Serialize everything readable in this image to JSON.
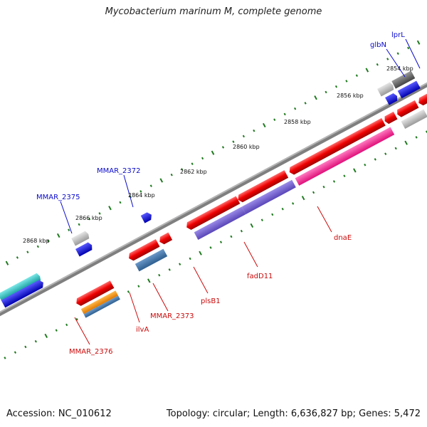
{
  "title": "Mycobacterium marinum M, complete genome",
  "footer": {
    "accession": "Accession: NC_010612",
    "summary": "Topology: circular; Length: 6,636,827 bp; Genes: 5,472"
  },
  "colors": {
    "backbone": "#7f7f7f",
    "tick": "#1f7a1f",
    "label_forward": "#0a0acc",
    "label_reverse": "#cc0a0a"
  },
  "scale_labels": [
    "2854 kbp",
    "2856 kbp",
    "2858 kbp",
    "2860 kbp",
    "2862 kbp",
    "2864 kbp",
    "2866 kbp",
    "2868 kbp"
  ],
  "gene_labels": [
    {
      "name": "lprL",
      "strand": "forward"
    },
    {
      "name": "glbN",
      "strand": "forward"
    },
    {
      "name": "MMAR_2372",
      "strand": "forward"
    },
    {
      "name": "MMAR_2375",
      "strand": "forward"
    },
    {
      "name": "dnaE",
      "strand": "reverse"
    },
    {
      "name": "fadD11",
      "strand": "reverse"
    },
    {
      "name": "plsB1",
      "strand": "reverse"
    },
    {
      "name": "MMAR_2373",
      "strand": "reverse"
    },
    {
      "name": "ilvA",
      "strand": "reverse"
    },
    {
      "name": "MMAR_2376",
      "strand": "reverse"
    }
  ]
}
